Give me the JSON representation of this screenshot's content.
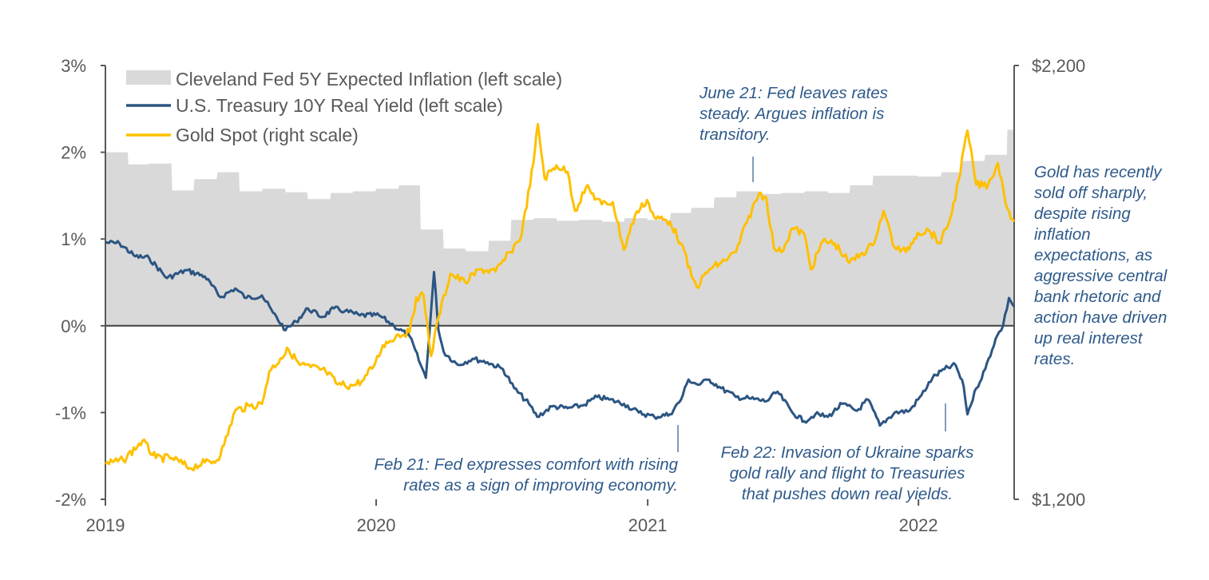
{
  "chart_data": {
    "type": "line",
    "x_range": [
      "2019-01-01",
      "2022-05-10"
    ],
    "x_ticks": [
      {
        "label": "2019",
        "date": "2019-01-01"
      },
      {
        "label": "2020",
        "date": "2020-01-01"
      },
      {
        "label": "2021",
        "date": "2021-01-01"
      },
      {
        "label": "2022",
        "date": "2022-01-01"
      }
    ],
    "left_axis": {
      "ylim": [
        -2,
        3
      ],
      "ticks": [
        {
          "label": "3%",
          "value": 3
        },
        {
          "label": "2%",
          "value": 2
        },
        {
          "label": "1%",
          "value": 1
        },
        {
          "label": "0%",
          "value": 0
        },
        {
          "label": "-1%",
          "value": -1
        },
        {
          "label": "-2%",
          "value": -2
        }
      ]
    },
    "right_axis": {
      "ylim": [
        1200,
        2200
      ],
      "ticks": [
        {
          "label": "$2,200",
          "value": 2200
        },
        {
          "label": "$1,200",
          "value": 1200
        }
      ]
    },
    "grid": false,
    "legend_position": "top-left",
    "series": [
      {
        "name": "Cleveland Fed 5Y Expected Inflation (left scale)",
        "type": "area",
        "axis": "left",
        "color": "#D9D9D9",
        "points": [
          [
            "2019-01-01",
            2.0
          ],
          [
            "2019-01-31",
            2.0
          ],
          [
            "2019-02-01",
            1.86
          ],
          [
            "2019-02-28",
            1.86
          ],
          [
            "2019-03-01",
            1.87
          ],
          [
            "2019-03-31",
            1.87
          ],
          [
            "2019-04-01",
            1.56
          ],
          [
            "2019-04-30",
            1.56
          ],
          [
            "2019-05-01",
            1.69
          ],
          [
            "2019-05-31",
            1.69
          ],
          [
            "2019-06-01",
            1.77
          ],
          [
            "2019-06-30",
            1.77
          ],
          [
            "2019-07-01",
            1.55
          ],
          [
            "2019-07-31",
            1.55
          ],
          [
            "2019-08-01",
            1.58
          ],
          [
            "2019-08-31",
            1.58
          ],
          [
            "2019-09-01",
            1.54
          ],
          [
            "2019-09-30",
            1.54
          ],
          [
            "2019-10-01",
            1.46
          ],
          [
            "2019-10-31",
            1.46
          ],
          [
            "2019-11-01",
            1.53
          ],
          [
            "2019-11-30",
            1.53
          ],
          [
            "2019-12-01",
            1.55
          ],
          [
            "2019-12-31",
            1.55
          ],
          [
            "2020-01-01",
            1.58
          ],
          [
            "2020-01-31",
            1.58
          ],
          [
            "2020-02-01",
            1.62
          ],
          [
            "2020-02-29",
            1.62
          ],
          [
            "2020-03-01",
            1.11
          ],
          [
            "2020-03-31",
            1.11
          ],
          [
            "2020-04-01",
            0.89
          ],
          [
            "2020-04-30",
            0.89
          ],
          [
            "2020-05-01",
            0.86
          ],
          [
            "2020-05-31",
            0.86
          ],
          [
            "2020-06-01",
            0.98
          ],
          [
            "2020-06-30",
            0.98
          ],
          [
            "2020-07-01",
            1.22
          ],
          [
            "2020-07-31",
            1.22
          ],
          [
            "2020-08-01",
            1.24
          ],
          [
            "2020-08-31",
            1.24
          ],
          [
            "2020-09-01",
            1.21
          ],
          [
            "2020-09-30",
            1.21
          ],
          [
            "2020-10-01",
            1.22
          ],
          [
            "2020-10-31",
            1.22
          ],
          [
            "2020-11-01",
            1.2
          ],
          [
            "2020-11-30",
            1.2
          ],
          [
            "2020-12-01",
            1.24
          ],
          [
            "2020-12-31",
            1.24
          ],
          [
            "2021-01-01",
            1.22
          ],
          [
            "2021-01-31",
            1.22
          ],
          [
            "2021-02-01",
            1.3
          ],
          [
            "2021-02-28",
            1.3
          ],
          [
            "2021-03-01",
            1.36
          ],
          [
            "2021-03-31",
            1.36
          ],
          [
            "2021-04-01",
            1.48
          ],
          [
            "2021-04-30",
            1.48
          ],
          [
            "2021-05-01",
            1.55
          ],
          [
            "2021-05-31",
            1.55
          ],
          [
            "2021-06-01",
            1.52
          ],
          [
            "2021-06-30",
            1.52
          ],
          [
            "2021-07-01",
            1.53
          ],
          [
            "2021-07-31",
            1.53
          ],
          [
            "2021-08-01",
            1.55
          ],
          [
            "2021-08-31",
            1.55
          ],
          [
            "2021-09-01",
            1.53
          ],
          [
            "2021-09-30",
            1.53
          ],
          [
            "2021-10-01",
            1.62
          ],
          [
            "2021-10-31",
            1.62
          ],
          [
            "2021-11-01",
            1.73
          ],
          [
            "2021-11-30",
            1.73
          ],
          [
            "2021-12-01",
            1.73
          ],
          [
            "2021-12-31",
            1.73
          ],
          [
            "2022-01-01",
            1.72
          ],
          [
            "2022-01-31",
            1.72
          ],
          [
            "2022-02-01",
            1.77
          ],
          [
            "2022-02-28",
            1.77
          ],
          [
            "2022-03-01",
            1.9
          ],
          [
            "2022-03-31",
            1.9
          ],
          [
            "2022-04-01",
            1.97
          ],
          [
            "2022-04-30",
            1.97
          ],
          [
            "2022-05-01",
            2.26
          ],
          [
            "2022-05-10",
            2.26
          ]
        ]
      },
      {
        "name": "U.S. Treasury 10Y Real Yield (left scale)",
        "type": "line",
        "axis": "left",
        "color": "#2C5582",
        "points": [
          [
            "2019-01-01",
            0.96
          ],
          [
            "2019-01-20",
            0.95
          ],
          [
            "2019-02-10",
            0.8
          ],
          [
            "2019-03-01",
            0.78
          ],
          [
            "2019-03-25",
            0.55
          ],
          [
            "2019-04-20",
            0.64
          ],
          [
            "2019-05-15",
            0.57
          ],
          [
            "2019-06-05",
            0.33
          ],
          [
            "2019-06-25",
            0.43
          ],
          [
            "2019-07-10",
            0.32
          ],
          [
            "2019-07-31",
            0.35
          ],
          [
            "2019-08-15",
            0.15
          ],
          [
            "2019-09-01",
            -0.05
          ],
          [
            "2019-09-15",
            0.05
          ],
          [
            "2019-10-01",
            0.2
          ],
          [
            "2019-10-20",
            0.1
          ],
          [
            "2019-11-05",
            0.2
          ],
          [
            "2019-11-20",
            0.17
          ],
          [
            "2019-12-10",
            0.12
          ],
          [
            "2020-01-05",
            0.12
          ],
          [
            "2020-01-25",
            0.0
          ],
          [
            "2020-02-15",
            -0.12
          ],
          [
            "2020-03-01",
            -0.45
          ],
          [
            "2020-03-08",
            -0.6
          ],
          [
            "2020-03-19",
            0.62
          ],
          [
            "2020-03-25",
            -0.05
          ],
          [
            "2020-04-01",
            -0.3
          ],
          [
            "2020-04-20",
            -0.45
          ],
          [
            "2020-05-10",
            -0.38
          ],
          [
            "2020-05-30",
            -0.42
          ],
          [
            "2020-06-20",
            -0.5
          ],
          [
            "2020-07-05",
            -0.72
          ],
          [
            "2020-07-25",
            -0.9
          ],
          [
            "2020-08-05",
            -1.05
          ],
          [
            "2020-08-25",
            -0.93
          ],
          [
            "2020-09-15",
            -0.95
          ],
          [
            "2020-10-05",
            -0.92
          ],
          [
            "2020-10-25",
            -0.82
          ],
          [
            "2020-11-10",
            -0.85
          ],
          [
            "2020-11-30",
            -0.9
          ],
          [
            "2020-12-20",
            -1.0
          ],
          [
            "2021-01-10",
            -1.05
          ],
          [
            "2021-01-31",
            -1.02
          ],
          [
            "2021-02-15",
            -0.85
          ],
          [
            "2021-02-25",
            -0.62
          ],
          [
            "2021-03-10",
            -0.68
          ],
          [
            "2021-03-25",
            -0.62
          ],
          [
            "2021-04-10",
            -0.72
          ],
          [
            "2021-04-30",
            -0.82
          ],
          [
            "2021-05-20",
            -0.84
          ],
          [
            "2021-06-10",
            -0.87
          ],
          [
            "2021-06-25",
            -0.76
          ],
          [
            "2021-07-15",
            -1.0
          ],
          [
            "2021-07-31",
            -1.1
          ],
          [
            "2021-08-15",
            -1.02
          ],
          [
            "2021-09-01",
            -1.05
          ],
          [
            "2021-09-20",
            -0.9
          ],
          [
            "2021-10-10",
            -0.98
          ],
          [
            "2021-10-25",
            -0.85
          ],
          [
            "2021-11-10",
            -1.15
          ],
          [
            "2021-11-30",
            -1.0
          ],
          [
            "2021-12-20",
            -0.98
          ],
          [
            "2022-01-05",
            -0.8
          ],
          [
            "2022-01-20",
            -0.6
          ],
          [
            "2022-02-05",
            -0.5
          ],
          [
            "2022-02-20",
            -0.45
          ],
          [
            "2022-03-03",
            -0.7
          ],
          [
            "2022-03-08",
            -1.02
          ],
          [
            "2022-03-20",
            -0.72
          ],
          [
            "2022-04-01",
            -0.5
          ],
          [
            "2022-04-15",
            -0.15
          ],
          [
            "2022-04-25",
            0.0
          ],
          [
            "2022-05-03",
            0.32
          ],
          [
            "2022-05-10",
            0.22
          ]
        ]
      },
      {
        "name": "Gold Spot (right scale)",
        "type": "line",
        "axis": "right",
        "color": "#FFC000",
        "points": [
          [
            "2019-01-01",
            1282
          ],
          [
            "2019-01-25",
            1290
          ],
          [
            "2019-02-20",
            1335
          ],
          [
            "2019-03-10",
            1295
          ],
          [
            "2019-04-01",
            1295
          ],
          [
            "2019-04-25",
            1272
          ],
          [
            "2019-05-15",
            1285
          ],
          [
            "2019-05-31",
            1290
          ],
          [
            "2019-06-10",
            1325
          ],
          [
            "2019-06-25",
            1405
          ],
          [
            "2019-07-15",
            1415
          ],
          [
            "2019-07-31",
            1420
          ],
          [
            "2019-08-10",
            1495
          ],
          [
            "2019-08-25",
            1525
          ],
          [
            "2019-09-05",
            1545
          ],
          [
            "2019-09-20",
            1510
          ],
          [
            "2019-10-05",
            1505
          ],
          [
            "2019-10-25",
            1495
          ],
          [
            "2019-11-10",
            1465
          ],
          [
            "2019-11-30",
            1462
          ],
          [
            "2019-12-15",
            1475
          ],
          [
            "2019-12-31",
            1515
          ],
          [
            "2020-01-10",
            1555
          ],
          [
            "2020-01-31",
            1580
          ],
          [
            "2020-02-15",
            1585
          ],
          [
            "2020-02-24",
            1665
          ],
          [
            "2020-03-05",
            1670
          ],
          [
            "2020-03-15",
            1530
          ],
          [
            "2020-03-25",
            1620
          ],
          [
            "2020-04-10",
            1720
          ],
          [
            "2020-04-30",
            1700
          ],
          [
            "2020-05-20",
            1730
          ],
          [
            "2020-06-10",
            1725
          ],
          [
            "2020-06-30",
            1770
          ],
          [
            "2020-07-15",
            1810
          ],
          [
            "2020-07-31",
            1975
          ],
          [
            "2020-08-06",
            2065
          ],
          [
            "2020-08-15",
            1940
          ],
          [
            "2020-08-31",
            1970
          ],
          [
            "2020-09-15",
            1955
          ],
          [
            "2020-09-25",
            1865
          ],
          [
            "2020-10-10",
            1920
          ],
          [
            "2020-10-31",
            1880
          ],
          [
            "2020-11-15",
            1885
          ],
          [
            "2020-11-30",
            1775
          ],
          [
            "2020-12-15",
            1855
          ],
          [
            "2020-12-31",
            1890
          ],
          [
            "2021-01-10",
            1850
          ],
          [
            "2021-01-31",
            1840
          ],
          [
            "2021-02-15",
            1790
          ],
          [
            "2021-03-01",
            1715
          ],
          [
            "2021-03-08",
            1690
          ],
          [
            "2021-03-25",
            1730
          ],
          [
            "2021-04-10",
            1745
          ],
          [
            "2021-04-30",
            1770
          ],
          [
            "2021-05-15",
            1840
          ],
          [
            "2021-05-31",
            1905
          ],
          [
            "2021-06-10",
            1895
          ],
          [
            "2021-06-20",
            1780
          ],
          [
            "2021-06-30",
            1770
          ],
          [
            "2021-07-15",
            1825
          ],
          [
            "2021-07-31",
            1812
          ],
          [
            "2021-08-09",
            1730
          ],
          [
            "2021-08-25",
            1795
          ],
          [
            "2021-09-10",
            1790
          ],
          [
            "2021-09-30",
            1745
          ],
          [
            "2021-10-15",
            1765
          ],
          [
            "2021-10-31",
            1785
          ],
          [
            "2021-11-15",
            1865
          ],
          [
            "2021-11-30",
            1780
          ],
          [
            "2021-12-15",
            1770
          ],
          [
            "2021-12-31",
            1815
          ],
          [
            "2022-01-15",
            1820
          ],
          [
            "2022-01-31",
            1790
          ],
          [
            "2022-02-15",
            1860
          ],
          [
            "2022-02-24",
            1935
          ],
          [
            "2022-03-08",
            2050
          ],
          [
            "2022-03-20",
            1925
          ],
          [
            "2022-04-05",
            1925
          ],
          [
            "2022-04-18",
            1975
          ],
          [
            "2022-05-01",
            1870
          ],
          [
            "2022-05-10",
            1840
          ]
        ]
      }
    ]
  },
  "annotations": {
    "june21": [
      "June 21: Fed leaves rates",
      "steady. Argues inflation is",
      "transitory."
    ],
    "feb21": [
      "Feb 21: Fed expresses comfort with rising",
      "rates as a sign of improving economy."
    ],
    "feb22": [
      "Feb 22: Invasion of Ukraine sparks",
      "gold rally and flight to Treasuries",
      "that pushes down real yields."
    ],
    "gold_note": [
      "Gold has recently",
      "sold off sharply,",
      "despite rising",
      "inflation",
      "expectations, as",
      "aggressive central",
      "bank rhetoric and",
      "action have driven",
      "up real interest",
      "rates."
    ]
  }
}
